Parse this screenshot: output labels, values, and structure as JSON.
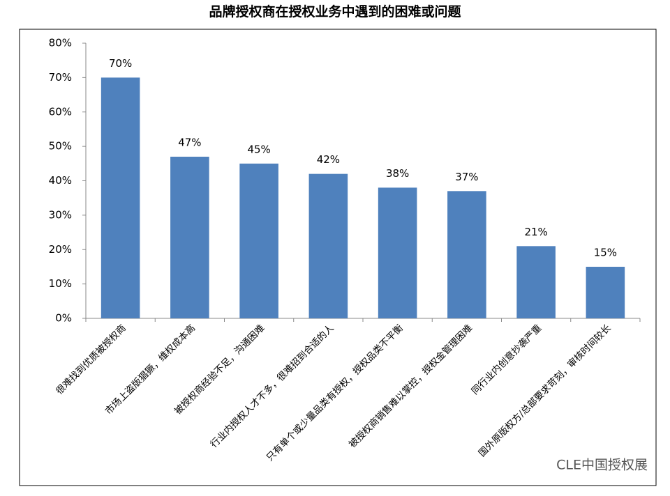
{
  "chart_data": {
    "type": "bar",
    "title": "品牌授权商在授权业务中遇到的困难或问题",
    "categories": [
      "很难找到优质被授权商",
      "市场上盗版猖獗，维权成本高",
      "被授权商经验不足，沟通困难",
      "行业内授权人才不多，很难招到合适的人",
      "只有单个或少量品类有授权，授权品类不平衡",
      "被授权商销售难以掌控，授权金管理困难",
      "同行业内创意抄袭严重",
      "国外原版权方/总部要求苛刻，审核时间较长"
    ],
    "values": [
      70,
      47,
      45,
      42,
      38,
      37,
      21,
      15
    ],
    "value_labels": [
      "70%",
      "47%",
      "45%",
      "42%",
      "38%",
      "37%",
      "21%",
      "15%"
    ],
    "color": "#4f81bd",
    "ylim": [
      0,
      80
    ],
    "yticks": [
      {
        "value": 0,
        "label": "0%"
      },
      {
        "value": 10,
        "label": "10%"
      },
      {
        "value": 20,
        "label": "20%"
      },
      {
        "value": 30,
        "label": "30%"
      },
      {
        "value": 40,
        "label": "40%"
      },
      {
        "value": 50,
        "label": "50%"
      },
      {
        "value": 60,
        "label": "60%"
      },
      {
        "value": 70,
        "label": "70%"
      },
      {
        "value": 80,
        "label": "80%"
      }
    ],
    "grid": false
  },
  "watermark": "CLE中国授权展"
}
